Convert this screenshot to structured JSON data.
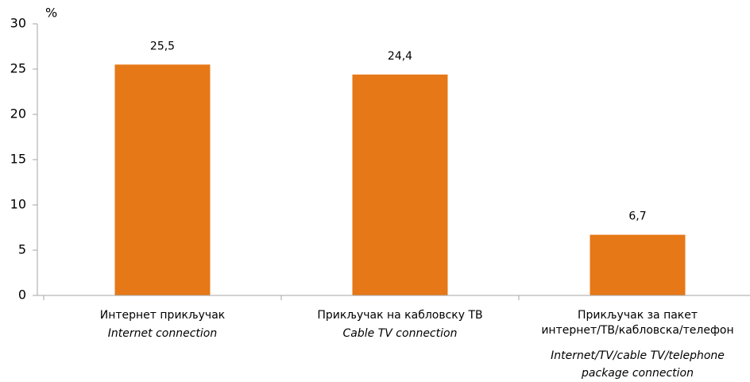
{
  "chart_data": {
    "type": "bar",
    "y_unit": "%",
    "categories": [
      [
        "Интернет прикључак"
      ],
      [
        "Прикључак на кабловску ТВ"
      ],
      [
        "Прикључак за пакет",
        "интернет/ТВ/кабловска/телефон"
      ]
    ],
    "categories_en": [
      [
        "Internet connection"
      ],
      [
        "Cable TV connection"
      ],
      [
        "Internet/TV/cable TV/telephone",
        "package connection"
      ]
    ],
    "values": [
      25.5,
      24.4,
      6.7
    ],
    "value_labels": [
      "25,5",
      "24,4",
      "6,7"
    ],
    "color": "#e67817",
    "ylim": [
      0,
      30
    ],
    "yticks": [
      0,
      5,
      10,
      15,
      20,
      25,
      30
    ],
    "grid": false
  }
}
